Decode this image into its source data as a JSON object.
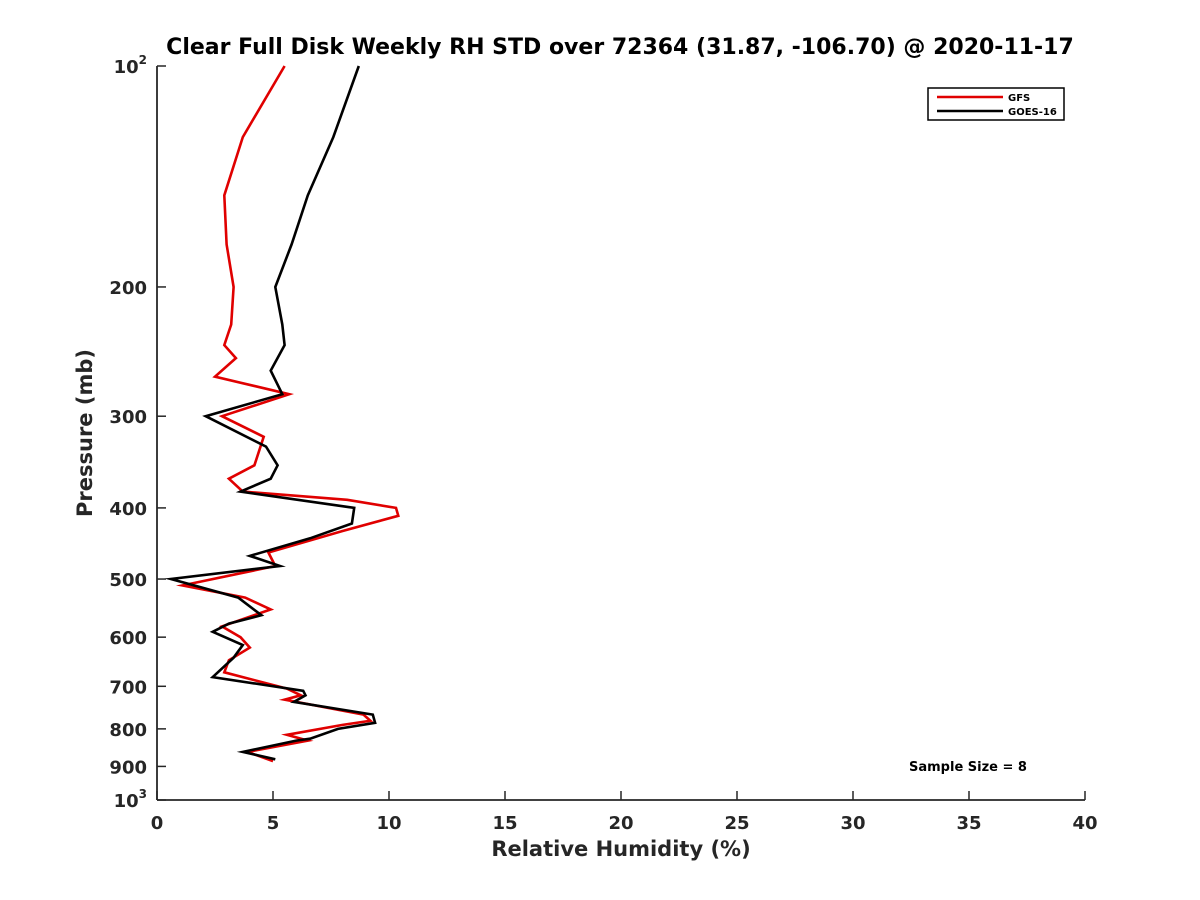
{
  "chart_data": {
    "type": "line",
    "title": "Clear Full Disk Weekly RH STD over 72364 (31.87, -106.70) @ 2020-11-17",
    "xlabel": "Relative Humidity (%)",
    "ylabel": "Pressure (mb)",
    "xlim": [
      0,
      40
    ],
    "ylim": [
      100,
      1000
    ],
    "y_scale": "log",
    "y_reversed": true,
    "grid": false,
    "legend_position": "top-right",
    "x_ticks": [
      "0",
      "5",
      "10",
      "15",
      "20",
      "25",
      "30",
      "35",
      "40"
    ],
    "y_ticks": [
      {
        "value": 100,
        "base": "10",
        "exp": "2"
      },
      {
        "value": 200,
        "label": "200"
      },
      {
        "value": 300,
        "label": "300"
      },
      {
        "value": 400,
        "label": "400"
      },
      {
        "value": 500,
        "label": "500"
      },
      {
        "value": 600,
        "label": "600"
      },
      {
        "value": 700,
        "label": "700"
      },
      {
        "value": 800,
        "label": "800"
      },
      {
        "value": 900,
        "label": "900"
      },
      {
        "value": 1000,
        "base": "10",
        "exp": "3"
      }
    ],
    "series": [
      {
        "name": "GFS",
        "color": "#e00000",
        "points": [
          [
            5.5,
            100
          ],
          [
            3.7,
            125
          ],
          [
            2.9,
            150
          ],
          [
            3.0,
            175
          ],
          [
            3.3,
            200
          ],
          [
            3.2,
            225
          ],
          [
            2.9,
            240
          ],
          [
            3.4,
            250
          ],
          [
            2.5,
            265
          ],
          [
            5.7,
            280
          ],
          [
            2.8,
            300
          ],
          [
            4.6,
            320
          ],
          [
            4.2,
            350
          ],
          [
            3.1,
            365
          ],
          [
            3.7,
            380
          ],
          [
            8.2,
            390
          ],
          [
            10.3,
            400
          ],
          [
            10.4,
            410
          ],
          [
            8.0,
            430
          ],
          [
            4.8,
            460
          ],
          [
            5.1,
            480
          ],
          [
            1.1,
            510
          ],
          [
            3.8,
            530
          ],
          [
            4.9,
            550
          ],
          [
            2.8,
            580
          ],
          [
            3.6,
            600
          ],
          [
            4.0,
            620
          ],
          [
            3.1,
            645
          ],
          [
            2.9,
            670
          ],
          [
            5.6,
            705
          ],
          [
            6.2,
            720
          ],
          [
            5.5,
            730
          ],
          [
            8.9,
            765
          ],
          [
            9.2,
            780
          ],
          [
            8.0,
            790
          ],
          [
            5.6,
            815
          ],
          [
            6.5,
            830
          ],
          [
            3.9,
            860
          ],
          [
            5.0,
            885
          ]
        ]
      },
      {
        "name": "GOES-16",
        "color": "#000000",
        "points": [
          [
            8.7,
            100
          ],
          [
            7.6,
            125
          ],
          [
            6.5,
            150
          ],
          [
            5.8,
            175
          ],
          [
            5.1,
            200
          ],
          [
            5.4,
            225
          ],
          [
            5.5,
            240
          ],
          [
            4.9,
            260
          ],
          [
            5.4,
            280
          ],
          [
            2.1,
            300
          ],
          [
            4.7,
            330
          ],
          [
            5.2,
            350
          ],
          [
            4.9,
            365
          ],
          [
            3.6,
            380
          ],
          [
            8.5,
            400
          ],
          [
            8.4,
            420
          ],
          [
            6.6,
            440
          ],
          [
            4.0,
            465
          ],
          [
            5.3,
            480
          ],
          [
            0.6,
            500
          ],
          [
            3.5,
            530
          ],
          [
            4.5,
            560
          ],
          [
            3.1,
            575
          ],
          [
            2.4,
            590
          ],
          [
            3.7,
            615
          ],
          [
            3.3,
            640
          ],
          [
            2.4,
            680
          ],
          [
            6.3,
            710
          ],
          [
            6.4,
            720
          ],
          [
            5.9,
            735
          ],
          [
            9.3,
            765
          ],
          [
            9.4,
            785
          ],
          [
            7.8,
            800
          ],
          [
            6.6,
            825
          ],
          [
            6.0,
            830
          ],
          [
            3.7,
            860
          ],
          [
            5.1,
            880
          ]
        ]
      }
    ],
    "annotation": "Sample Size = 8"
  }
}
